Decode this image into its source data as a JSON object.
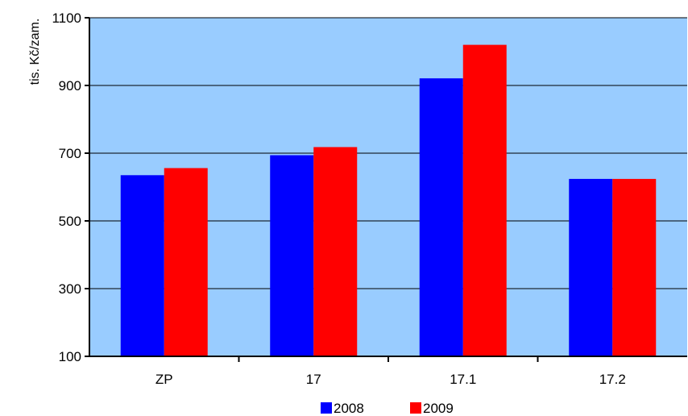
{
  "chart_data": {
    "type": "bar",
    "title": "",
    "xlabel": "",
    "ylabel": "tis. Kč/zam.",
    "categories": [
      "ZP",
      "17",
      "17.1",
      "17.2"
    ],
    "series": [
      {
        "name": "2008",
        "color": "#0000FF",
        "values": [
          635,
          694,
          921,
          624
        ]
      },
      {
        "name": "2009",
        "color": "#FF0000",
        "values": [
          656,
          718,
          1020,
          624
        ]
      }
    ],
    "ylim": [
      100,
      1100
    ],
    "yticks": [
      100,
      300,
      500,
      700,
      900,
      1100
    ],
    "grid": true,
    "plot_background": "#99CCFF",
    "legend_position": "bottom"
  }
}
